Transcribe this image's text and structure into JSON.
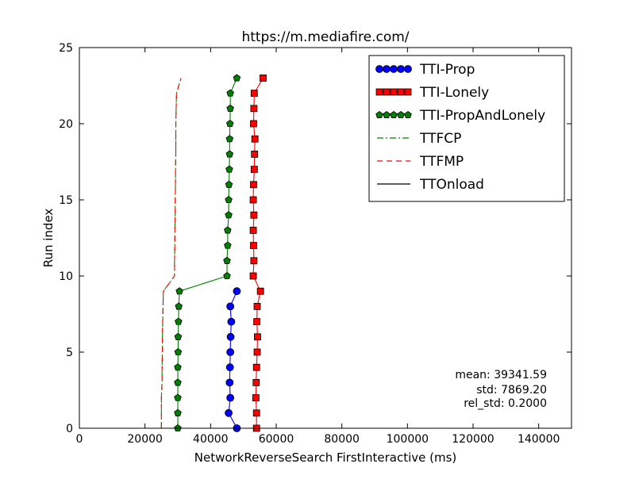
{
  "chart_data": {
    "type": "line",
    "title": "https://m.mediafire.com/",
    "xlabel": "NetworkReverseSearch FirstInteractive (ms)",
    "ylabel": "Run index",
    "xlim": [
      0,
      150000
    ],
    "ylim": [
      0,
      25
    ],
    "xticks": [
      "0",
      "20000",
      "40000",
      "60000",
      "80000",
      "100000",
      "120000",
      "140000"
    ],
    "yticks": [
      "0",
      "5",
      "10",
      "15",
      "20",
      "25"
    ],
    "grid": false,
    "legend_position": "top-right",
    "stats": [
      "mean: 39341.59",
      "std: 7869.20",
      "rel_std: 0.2000"
    ],
    "series": [
      {
        "name": "TTI-Prop",
        "color": "#0000ff",
        "marker": "circle",
        "x": [
          48000,
          45500,
          46000,
          45800,
          45900,
          46000,
          46100,
          46300,
          46000,
          48000
        ],
        "y": [
          0,
          1,
          2,
          3,
          4,
          5,
          6,
          7,
          8,
          9
        ]
      },
      {
        "name": "TTI-Lonely",
        "color": "#ff0000",
        "marker": "square",
        "x": [
          54000,
          54000,
          53800,
          53900,
          54000,
          54200,
          54300,
          54100,
          54200,
          55200,
          53000,
          53200,
          53100,
          53000,
          53200,
          53000,
          53100,
          53300,
          53400,
          53500,
          53100,
          53200,
          53300,
          56000
        ],
        "y": [
          0,
          1,
          2,
          3,
          4,
          5,
          6,
          7,
          8,
          9,
          10,
          11,
          12,
          13,
          14,
          15,
          16,
          17,
          18,
          19,
          20,
          21,
          22,
          23
        ]
      },
      {
        "name": "TTI-PropAndLonely",
        "color": "#008000",
        "marker": "pentagon",
        "x": [
          30000,
          30000,
          30000,
          30000,
          30000,
          30100,
          30100,
          30200,
          30300,
          30500,
          45000,
          45000,
          45200,
          45200,
          45500,
          45500,
          45600,
          45700,
          45800,
          45800,
          45900,
          46000,
          46000,
          48000
        ],
        "y": [
          0,
          1,
          2,
          3,
          4,
          5,
          6,
          7,
          8,
          9,
          10,
          11,
          12,
          13,
          14,
          15,
          16,
          17,
          18,
          19,
          20,
          21,
          22,
          23
        ]
      },
      {
        "name": "TTFCP",
        "color": "#008000",
        "dash": "8,3,2,3",
        "x": [
          25000,
          25000,
          25000,
          25200,
          25200,
          25300,
          25300,
          25400,
          25500,
          25600,
          29000,
          29000,
          29100,
          29100,
          29200,
          29200,
          29300,
          29300,
          29400,
          29400,
          29400,
          29500,
          29600,
          31000
        ],
        "y": [
          0,
          1,
          2,
          3,
          4,
          5,
          6,
          7,
          8,
          9,
          10,
          11,
          12,
          13,
          14,
          15,
          16,
          17,
          18,
          19,
          20,
          21,
          22,
          23
        ]
      },
      {
        "name": "TTFMP",
        "color": "#ff0000",
        "dash": "7,5",
        "x": [
          25000,
          25000,
          25000,
          25200,
          25200,
          25300,
          25300,
          25400,
          25500,
          25600,
          29000,
          29000,
          29100,
          29100,
          29200,
          29200,
          29300,
          29300,
          29400,
          29400,
          29400,
          29500,
          29600,
          31000
        ],
        "y": [
          0,
          1,
          2,
          3,
          4,
          5,
          6,
          7,
          8,
          9,
          10,
          11,
          12,
          13,
          14,
          15,
          16,
          17,
          18,
          19,
          20,
          21,
          22,
          23
        ]
      },
      {
        "name": "TTOnload",
        "color": "#000000",
        "marker": "none",
        "x": [],
        "y": []
      }
    ]
  }
}
